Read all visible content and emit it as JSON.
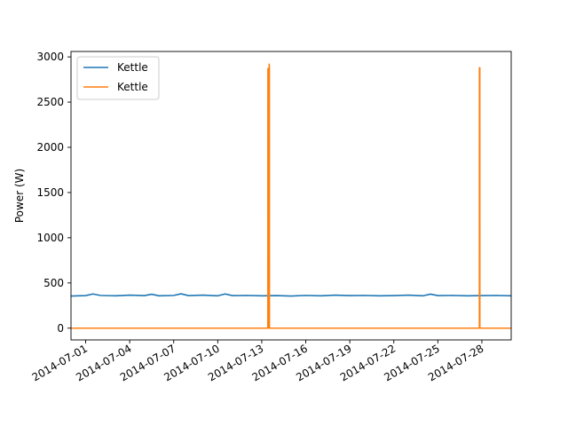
{
  "chart_data": {
    "type": "line",
    "title": "",
    "xlabel": "",
    "ylabel": "Power (W)",
    "x_type": "date",
    "xlim": [
      "2014-06-30",
      "2014-07-30"
    ],
    "ylim": [
      -130,
      3060
    ],
    "xticks": [
      "2014-07-01",
      "2014-07-04",
      "2014-07-07",
      "2014-07-10",
      "2014-07-13",
      "2014-07-16",
      "2014-07-19",
      "2014-07-22",
      "2014-07-25",
      "2014-07-28"
    ],
    "yticks": [
      0,
      500,
      1000,
      1500,
      2000,
      2500,
      3000
    ],
    "grid": false,
    "legend_position": "top-left",
    "series": [
      {
        "name": "Kettle",
        "color": "#1f77b4",
        "points": [
          [
            "2014-06-30",
            355
          ],
          [
            "2014-07-01",
            360
          ],
          [
            "2014-07-01T12:00",
            378
          ],
          [
            "2014-07-02",
            362
          ],
          [
            "2014-07-03",
            358
          ],
          [
            "2014-07-04",
            365
          ],
          [
            "2014-07-05",
            360
          ],
          [
            "2014-07-05T12:00",
            375
          ],
          [
            "2014-07-06",
            358
          ],
          [
            "2014-07-07",
            362
          ],
          [
            "2014-07-07T12:00",
            380
          ],
          [
            "2014-07-08",
            360
          ],
          [
            "2014-07-09",
            365
          ],
          [
            "2014-07-10",
            358
          ],
          [
            "2014-07-10T12:00",
            378
          ],
          [
            "2014-07-11",
            360
          ],
          [
            "2014-07-12",
            362
          ],
          [
            "2014-07-13",
            358
          ],
          [
            "2014-07-14",
            360
          ],
          [
            "2014-07-15",
            355
          ],
          [
            "2014-07-16",
            362
          ],
          [
            "2014-07-17",
            358
          ],
          [
            "2014-07-18",
            365
          ],
          [
            "2014-07-19",
            360
          ],
          [
            "2014-07-20",
            362
          ],
          [
            "2014-07-21",
            358
          ],
          [
            "2014-07-22",
            360
          ],
          [
            "2014-07-23",
            365
          ],
          [
            "2014-07-24",
            358
          ],
          [
            "2014-07-24T12:00",
            376
          ],
          [
            "2014-07-25",
            360
          ],
          [
            "2014-07-26",
            362
          ],
          [
            "2014-07-27",
            358
          ],
          [
            "2014-07-28",
            360
          ],
          [
            "2014-07-29",
            362
          ],
          [
            "2014-07-30",
            358
          ]
        ]
      },
      {
        "name": "Kettle",
        "color": "#ff7f0e",
        "points": [
          [
            "2014-06-30",
            0
          ],
          [
            "2014-07-13T10:00",
            0
          ],
          [
            "2014-07-13T10:05",
            2870
          ],
          [
            "2014-07-13T10:30",
            2870
          ],
          [
            "2014-07-13T10:35",
            0
          ],
          [
            "2014-07-13T12:00",
            0
          ],
          [
            "2014-07-13T12:05",
            2920
          ],
          [
            "2014-07-13T12:30",
            2880
          ],
          [
            "2014-07-13T12:35",
            0
          ],
          [
            "2014-07-27T20:00",
            0
          ],
          [
            "2014-07-27T20:05",
            2880
          ],
          [
            "2014-07-27T20:40",
            2880
          ],
          [
            "2014-07-27T20:45",
            0
          ],
          [
            "2014-07-30",
            0
          ]
        ]
      }
    ]
  }
}
